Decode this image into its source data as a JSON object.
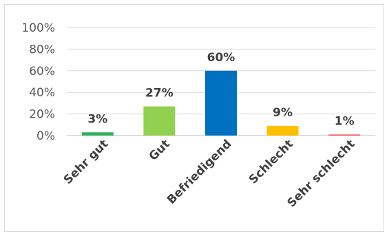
{
  "chart_data": {
    "type": "bar",
    "categories": [
      "Sehr gut",
      "Gut",
      "Befriedigend",
      "Schlecht",
      "Sehr schlecht"
    ],
    "values": [
      3,
      27,
      60,
      9,
      1
    ],
    "data_labels": [
      "3%",
      "27%",
      "60%",
      "9%",
      "1%"
    ],
    "colors": [
      "#2eaf5e",
      "#92d050",
      "#0070c0",
      "#ffc000",
      "#ff5050"
    ],
    "yticks": [
      "0%",
      "20%",
      "40%",
      "60%",
      "80%",
      "100%"
    ],
    "ylim": [
      0,
      100
    ],
    "grid": true,
    "legend": "none",
    "title": "",
    "xlabel": "",
    "ylabel": ""
  }
}
